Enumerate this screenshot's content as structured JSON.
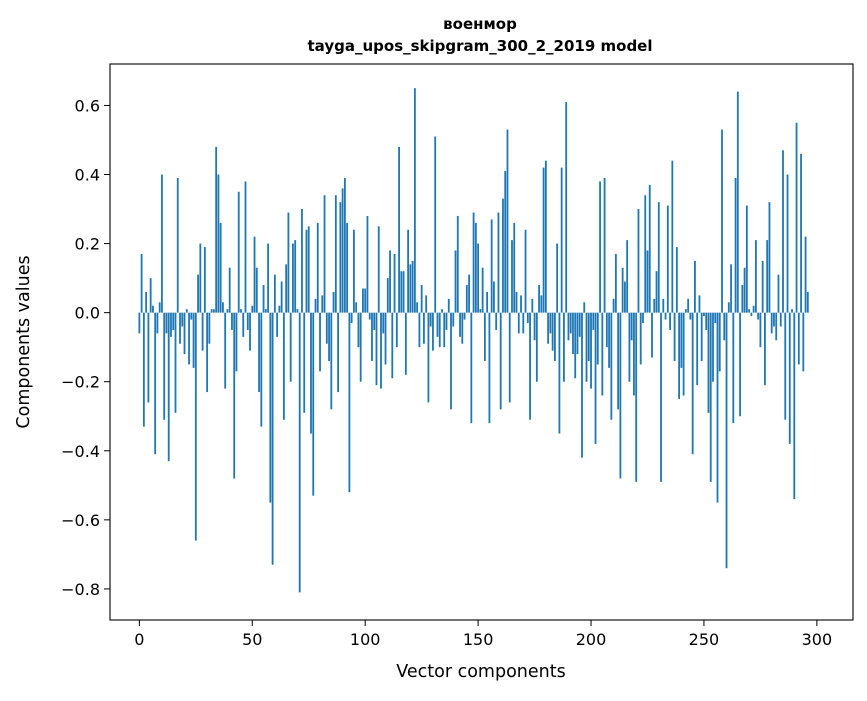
{
  "chart_data": {
    "type": "bar",
    "title": "военмор",
    "subtitle": "tayga_upos_skipgram_300_2_2019 model",
    "xlabel": "Vector components",
    "ylabel": "Components values",
    "xlim": [
      -13,
      316
    ],
    "ylim": [
      -0.89,
      0.72
    ],
    "grid": false,
    "bar_color": "#1f77b4",
    "xticks": [
      0,
      50,
      100,
      150,
      200,
      250,
      300
    ],
    "xtick_labels": [
      "0",
      "50",
      "100",
      "150",
      "200",
      "250",
      "300"
    ],
    "yticks": [
      0.6,
      0.4,
      0.2,
      0.0,
      -0.2,
      -0.4,
      -0.6,
      -0.8
    ],
    "ytick_labels": [
      "0.6",
      "0.4",
      "0.2",
      "0.0",
      "−0.2",
      "−0.4",
      "−0.6",
      "−0.8"
    ],
    "x_start": 0,
    "values": [
      -0.06,
      0.17,
      -0.33,
      0.06,
      -0.26,
      0.1,
      0.02,
      -0.41,
      -0.06,
      0.03,
      0.4,
      -0.31,
      -0.06,
      -0.43,
      -0.07,
      -0.05,
      -0.29,
      0.39,
      -0.09,
      -0.04,
      -0.12,
      0.01,
      -0.15,
      -0.02,
      -0.16,
      -0.66,
      0.11,
      0.2,
      -0.11,
      0.19,
      -0.23,
      -0.09,
      0.01,
      0.01,
      0.48,
      0.4,
      0.26,
      0.03,
      -0.22,
      0.01,
      0.13,
      -0.05,
      -0.48,
      -0.17,
      0.35,
      0.01,
      -0.07,
      0.38,
      -0.05,
      -0.11,
      0.02,
      0.22,
      0.13,
      -0.23,
      -0.33,
      0.08,
      0.01,
      0.2,
      -0.55,
      -0.73,
      0.11,
      -0.07,
      0.02,
      0.09,
      -0.31,
      0.14,
      0.29,
      -0.2,
      0.2,
      0.21,
      0.01,
      -0.81,
      0.3,
      -0.29,
      0.24,
      0.25,
      -0.35,
      -0.53,
      0.04,
      0.26,
      -0.17,
      0.05,
      0.34,
      -0.09,
      -0.14,
      -0.28,
      0.06,
      0.34,
      -0.23,
      0.32,
      0.36,
      0.39,
      0.26,
      -0.52,
      -0.03,
      0.24,
      0.03,
      -0.1,
      -0.2,
      0.07,
      0.07,
      0.28,
      -0.02,
      -0.14,
      -0.05,
      -0.21,
      0.25,
      -0.22,
      -0.06,
      -0.15,
      0.1,
      0.18,
      -0.19,
      0.17,
      -0.1,
      0.48,
      0.12,
      0.12,
      -0.18,
      0.24,
      0.14,
      0.15,
      0.65,
      0.03,
      -0.1,
      0.08,
      -0.09,
      0.05,
      -0.26,
      -0.04,
      -0.11,
      0.51,
      -0.07,
      -0.1,
      0.01,
      -0.1,
      -0.05,
      0.04,
      -0.28,
      -0.04,
      0.18,
      0.28,
      -0.07,
      -0.09,
      -0.02,
      0.08,
      0.11,
      -0.32,
      0.29,
      0.26,
      0.2,
      0.01,
      0.13,
      -0.14,
      0.06,
      -0.32,
      0.27,
      0.09,
      -0.05,
      0.29,
      -0.28,
      0.33,
      0.41,
      0.53,
      -0.26,
      0.21,
      0.26,
      0.06,
      -0.06,
      0.05,
      -0.06,
      0.24,
      -0.03,
      -0.31,
      0.04,
      -0.08,
      -0.2,
      0.08,
      0.05,
      0.42,
      0.44,
      -0.09,
      -0.06,
      -0.11,
      -0.14,
      0.2,
      -0.35,
      0.42,
      -0.2,
      0.61,
      -0.08,
      -0.06,
      -0.12,
      -0.19,
      -0.12,
      -0.07,
      -0.42,
      0.03,
      -0.2,
      -0.14,
      -0.22,
      -0.05,
      -0.38,
      -0.15,
      0.38,
      -0.24,
      0.39,
      -0.1,
      -0.16,
      -0.31,
      0.04,
      0.17,
      -0.28,
      -0.48,
      0.13,
      0.09,
      0.21,
      -0.2,
      -0.08,
      -0.24,
      -0.49,
      0.3,
      -0.15,
      -0.03,
      0.34,
      0.18,
      0.37,
      -0.13,
      0.04,
      0.12,
      0.32,
      -0.49,
      0.04,
      -0.02,
      0.31,
      -0.05,
      0.44,
      -0.14,
      0.19,
      -0.25,
      -0.16,
      -0.24,
      0.01,
      0.04,
      -0.02,
      -0.41,
      0.15,
      -0.21,
      0.05,
      -0.14,
      -0.01,
      -0.05,
      -0.29,
      -0.49,
      -0.2,
      -0.03,
      -0.55,
      -0.17,
      0.53,
      -0.08,
      -0.74,
      0.03,
      0.14,
      -0.32,
      0.39,
      0.64,
      -0.3,
      0.08,
      0.13,
      0.31,
      0.01,
      -0.01,
      0.02,
      0.21,
      -0.02,
      -0.1,
      0.15,
      -0.21,
      0.21,
      0.32,
      -0.06,
      -0.04,
      -0.08,
      0.11,
      -0.04,
      0.47,
      -0.31,
      0.4,
      -0.38,
      0.01,
      -0.54,
      0.55,
      -0.15,
      0.46,
      -0.17,
      0.22,
      0.06
    ]
  }
}
